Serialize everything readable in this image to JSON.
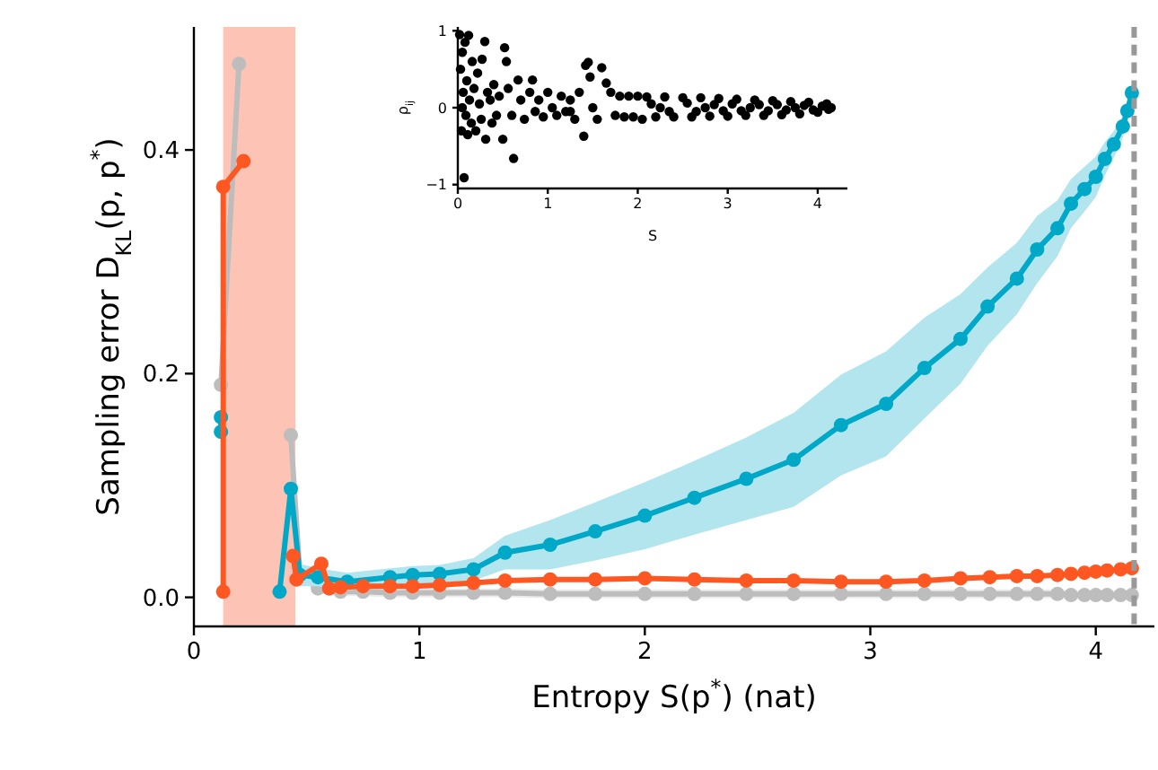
{
  "chart_data": [
    {
      "type": "line",
      "xlabel": "Entropy S(p$^{*}$) (nat)",
      "ylabel": "Sampling error D$_{KL}$(p, p$^{*}$)",
      "xlim": [
        0,
        4.26
      ],
      "ylim": [
        -0.026,
        0.51
      ],
      "xticks": [
        0,
        1,
        2,
        3,
        4
      ],
      "yticks": [
        {
          "value": 0,
          "label": "0.0"
        },
        {
          "value": 0.2,
          "label": "0.2"
        },
        {
          "value": 0.4,
          "label": "0.4"
        }
      ],
      "grid": false,
      "marker": "circle",
      "line_style": "solid",
      "bands": [
        {
          "axis": "x",
          "from": 0.13,
          "to": 0.45,
          "color": "#fdc3b5"
        }
      ],
      "ref_lines": [
        {
          "axis": "x",
          "value": 4.17,
          "color": "#999999",
          "line_style": "dashed"
        }
      ],
      "series": [
        {
          "color": "#bdbdbd",
          "x": [
            0.12,
            0.2,
            0.28,
            0.43,
            0.47,
            0.55,
            0.65,
            0.75,
            0.87,
            0.97,
            1.09,
            1.24,
            1.38,
            1.58,
            1.78,
            2.0,
            2.22,
            2.45,
            2.66,
            2.87,
            3.07,
            3.24,
            3.4,
            3.53,
            3.65,
            3.74,
            3.83,
            3.89,
            3.95,
            4.0,
            4.05,
            4.11,
            4.16
          ],
          "values": [
            0.19,
            0.477,
            null,
            0.145,
            0.02,
            0.008,
            0.005,
            0.005,
            0.004,
            0.004,
            0.004,
            0.004,
            0.004,
            0.003,
            0.003,
            0.003,
            0.003,
            0.003,
            0.003,
            0.003,
            0.003,
            0.003,
            0.003,
            0.003,
            0.003,
            0.003,
            0.003,
            0.002,
            0.002,
            0.002,
            0.002,
            0.002,
            0.002
          ],
          "lower": [
            null,
            null,
            null,
            null,
            null,
            0.004,
            0.001,
            0.001,
            0.0,
            0.0,
            0.0,
            0.0,
            0.0,
            -0.001,
            -0.001,
            -0.001,
            -0.001,
            -0.001,
            -0.001,
            -0.001,
            -0.001,
            -0.001,
            -0.001,
            -0.001,
            -0.001,
            -0.001,
            -0.001,
            -0.002,
            -0.002,
            -0.002,
            -0.002,
            -0.002,
            -0.002
          ],
          "upper": [
            null,
            null,
            null,
            null,
            null,
            0.012,
            0.009,
            0.009,
            0.008,
            0.008,
            0.008,
            0.008,
            0.008,
            0.007,
            0.007,
            0.007,
            0.007,
            0.007,
            0.007,
            0.007,
            0.007,
            0.007,
            0.007,
            0.007,
            0.007,
            0.007,
            0.007,
            0.006,
            0.006,
            0.006,
            0.006,
            0.006,
            0.006
          ]
        },
        {
          "color": "#00a8c8",
          "x": [
            0.12,
            0.12,
            0.25,
            0.38,
            0.43,
            0.47,
            0.55,
            0.68,
            0.87,
            0.97,
            1.09,
            1.24,
            1.38,
            1.58,
            1.78,
            2.0,
            2.22,
            2.45,
            2.66,
            2.87,
            3.07,
            3.24,
            3.4,
            3.52,
            3.65,
            3.74,
            3.83,
            3.89,
            3.95,
            4.0,
            4.04,
            4.08,
            4.12,
            4.14,
            4.16
          ],
          "values": [
            0.161,
            0.148,
            null,
            0.005,
            0.097,
            0.02,
            0.018,
            0.014,
            0.018,
            0.02,
            0.021,
            0.025,
            0.04,
            0.047,
            0.059,
            0.073,
            0.089,
            0.106,
            0.123,
            0.154,
            0.173,
            0.205,
            0.231,
            0.26,
            0.285,
            0.311,
            0.33,
            0.352,
            0.365,
            0.376,
            0.392,
            0.405,
            0.421,
            0.435,
            0.451
          ],
          "lower": [
            null,
            null,
            null,
            null,
            null,
            0.01,
            0.01,
            0.006,
            0.01,
            0.012,
            0.013,
            0.015,
            0.025,
            0.025,
            0.033,
            0.043,
            0.056,
            0.069,
            0.081,
            0.109,
            0.126,
            0.16,
            0.191,
            0.225,
            0.253,
            0.281,
            0.305,
            0.33,
            0.345,
            0.358,
            0.377,
            0.393,
            0.411,
            0.427,
            0.447
          ],
          "upper": [
            null,
            null,
            null,
            null,
            null,
            0.03,
            0.026,
            0.022,
            0.026,
            0.028,
            0.029,
            0.035,
            0.055,
            0.069,
            0.085,
            0.103,
            0.122,
            0.143,
            0.165,
            0.199,
            0.22,
            0.25,
            0.271,
            0.295,
            0.317,
            0.341,
            0.355,
            0.374,
            0.385,
            0.394,
            0.407,
            0.417,
            0.431,
            0.443,
            0.455
          ]
        },
        {
          "color": "#ff5722",
          "x": [
            0.13,
            0.13,
            0.22,
            0.27,
            0.4,
            0.44,
            0.455,
            0.565,
            0.6,
            0.65,
            0.75,
            0.87,
            0.97,
            1.09,
            1.24,
            1.38,
            1.58,
            1.78,
            2.0,
            2.22,
            2.45,
            2.66,
            2.87,
            3.07,
            3.24,
            3.4,
            3.53,
            3.65,
            3.74,
            3.83,
            3.89,
            3.95,
            4.0,
            4.05,
            4.11,
            4.16
          ],
          "values": [
            0.005,
            0.367,
            0.39,
            null,
            null,
            0.037,
            0.016,
            0.03,
            0.008,
            0.009,
            0.01,
            0.01,
            0.01,
            0.011,
            0.013,
            0.015,
            0.016,
            0.016,
            0.017,
            0.016,
            0.015,
            0.015,
            0.014,
            0.014,
            0.015,
            0.017,
            0.018,
            0.019,
            0.019,
            0.02,
            0.021,
            0.022,
            0.023,
            0.024,
            0.025,
            0.026
          ]
        }
      ]
    },
    {
      "type": "scatter",
      "xlabel": "S",
      "ylabel": "ρ$_{ij}$",
      "xlim": [
        0,
        4.33
      ],
      "ylim": [
        -1.05,
        1.05
      ],
      "xticks": [
        0,
        1,
        2,
        3,
        4
      ],
      "yticks": [
        {
          "value": -1,
          "label": "−1"
        },
        0,
        1
      ],
      "grid": false,
      "marker": "circle",
      "series": [
        {
          "color": "#000000",
          "x": [
            0.02,
            0.03,
            0.04,
            0.05,
            0.06,
            0.07,
            0.08,
            0.09,
            0.1,
            0.11,
            0.12,
            0.13,
            0.15,
            0.16,
            0.18,
            0.2,
            0.22,
            0.24,
            0.26,
            0.27,
            0.3,
            0.31,
            0.33,
            0.36,
            0.38,
            0.4,
            0.43,
            0.46,
            0.5,
            0.52,
            0.54,
            0.56,
            0.6,
            0.62,
            0.67,
            0.7,
            0.74,
            0.8,
            0.83,
            0.86,
            0.9,
            0.95,
            1.0,
            1.05,
            1.1,
            1.15,
            1.2,
            1.25,
            1.3,
            1.35,
            1.4,
            1.42,
            1.45,
            1.47,
            1.5,
            1.55,
            1.6,
            1.65,
            1.7,
            1.75,
            1.8,
            1.85,
            1.9,
            1.95,
            2.0,
            2.05,
            2.1,
            2.2,
            2.3,
            2.4,
            2.5,
            2.6,
            2.7,
            2.8,
            2.9,
            3.0,
            3.1,
            3.2,
            3.3,
            3.4,
            3.5,
            3.6,
            3.7,
            3.8,
            3.9,
            4.0,
            4.1,
            4.15,
            2.25,
            2.75,
            3.25,
            3.75,
            1.25,
            0.05,
            2.15,
            2.35,
            2.55,
            2.65,
            2.85,
            2.95,
            3.05,
            3.15,
            3.35,
            3.45,
            3.55,
            3.65,
            3.85,
            3.95,
            4.05,
            4.12
          ],
          "values": [
            0.95,
            0.5,
            -0.3,
            0.72,
            0.2,
            -0.91,
            0.85,
            -0.1,
            0.35,
            -0.35,
            0.94,
            0.1,
            -0.2,
            0.6,
            0.25,
            -0.3,
            0.45,
            0.05,
            -0.15,
            0.63,
            0.86,
            -0.41,
            0.2,
            0.1,
            -0.2,
            0.3,
            -0.1,
            0.15,
            -0.41,
            0.78,
            0.6,
            0.25,
            -0.1,
            -0.66,
            0.36,
            0.1,
            -0.15,
            0.2,
            0.36,
            -0.05,
            0.1,
            -0.12,
            0.2,
            0.0,
            -0.1,
            0.15,
            -0.05,
            0.1,
            -0.15,
            0.2,
            -0.37,
            0.55,
            0.59,
            0.4,
            0.0,
            -0.15,
            0.52,
            0.32,
            0.2,
            -0.1,
            0.15,
            -0.12,
            0.15,
            -0.12,
            0.15,
            -0.15,
            0.14,
            -0.12,
            0.14,
            -0.12,
            0.13,
            -0.12,
            0.13,
            -0.11,
            0.12,
            -0.11,
            0.11,
            -0.1,
            0.1,
            -0.1,
            0.09,
            -0.09,
            0.08,
            -0.08,
            0.07,
            -0.06,
            0.05,
            0.0,
            0.0,
            0.0,
            0.0,
            0.0,
            -0.05,
            0.0,
            0.05,
            -0.05,
            0.06,
            -0.05,
            0.04,
            -0.04,
            0.05,
            -0.04,
            0.04,
            -0.04,
            0.04,
            -0.03,
            0.03,
            -0.03,
            0.02,
            -0.02
          ]
        }
      ]
    }
  ]
}
